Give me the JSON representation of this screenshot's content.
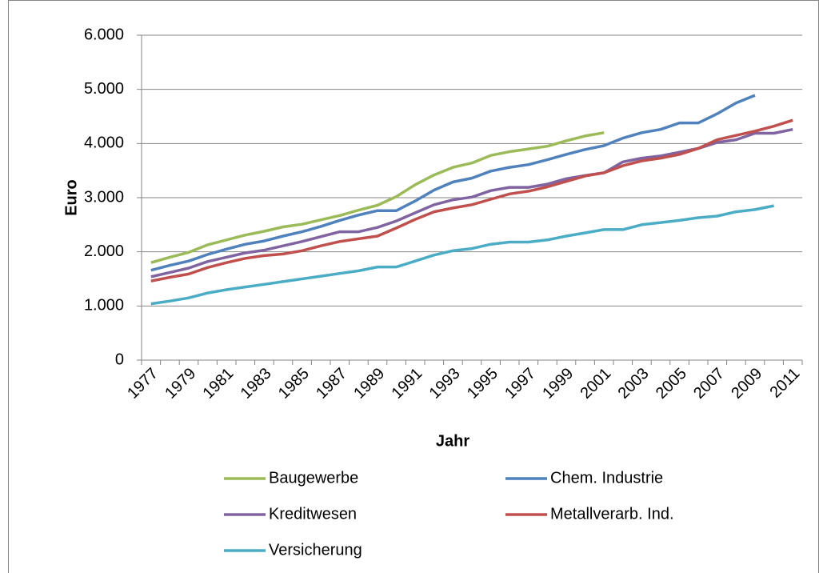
{
  "chart_data": {
    "type": "line",
    "y_label": "Euro",
    "x_label": "Jahr",
    "categories": [
      "1977",
      null,
      "1979",
      null,
      "1981",
      null,
      "1983",
      null,
      "1985",
      null,
      "1987",
      null,
      "1989",
      null,
      "1991",
      null,
      "1993",
      null,
      "1995",
      null,
      "1997",
      null,
      "1999",
      null,
      "2001",
      null,
      "2003",
      null,
      "2005",
      null,
      "2007",
      null,
      "2009",
      null,
      "2011"
    ],
    "ylim": [
      0,
      6000
    ],
    "yticks": [
      0,
      {
        "value": 1000,
        "label": "1.000"
      },
      {
        "value": 2000,
        "label": "2.000"
      },
      {
        "value": 3000,
        "label": "3.000"
      },
      {
        "value": 4000,
        "label": "4.000"
      },
      {
        "value": 5000,
        "label": "5.000"
      },
      {
        "value": 6000,
        "label": "6.000"
      }
    ],
    "grid": true,
    "legend": "bottom",
    "series": [
      {
        "name": "Baugewerbe",
        "color": "#9bbb59",
        "values": [
          1800,
          1900,
          1990,
          2130,
          2220,
          2310,
          2380,
          2460,
          2510,
          2590,
          2670,
          2770,
          2860,
          3020,
          3240,
          3420,
          3560,
          3640,
          3780,
          3850,
          3900,
          3950,
          4050,
          4140,
          4200,
          null,
          null,
          null,
          null,
          null,
          null,
          null,
          null,
          null,
          null
        ]
      },
      {
        "name": "Chem. Industrie",
        "color": "#4f81bd",
        "values": [
          1660,
          1750,
          1830,
          1950,
          2050,
          2140,
          2200,
          2290,
          2370,
          2470,
          2580,
          2680,
          2760,
          2760,
          2940,
          3140,
          3290,
          3360,
          3490,
          3560,
          3610,
          3700,
          3800,
          3890,
          3960,
          4100,
          4200,
          4260,
          4380,
          4380,
          4550,
          4750,
          4890,
          null,
          null
        ]
      },
      {
        "name": "Kreditwesen",
        "color": "#8064a2",
        "values": [
          1540,
          1620,
          1700,
          1820,
          1900,
          1980,
          2030,
          2110,
          2190,
          2280,
          2370,
          2370,
          2450,
          2570,
          2720,
          2870,
          2960,
          3010,
          3130,
          3190,
          3190,
          3250,
          3350,
          3410,
          3460,
          3660,
          3730,
          3770,
          3840,
          3910,
          4020,
          4070,
          4190,
          4190,
          4260
        ]
      },
      {
        "name": "Metallverarb. Ind.",
        "color": "#c0504d",
        "values": [
          1460,
          1530,
          1590,
          1710,
          1800,
          1880,
          1930,
          1960,
          2020,
          2110,
          2190,
          2240,
          2290,
          2440,
          2600,
          2740,
          2810,
          2870,
          2970,
          3070,
          3120,
          3200,
          3300,
          3400,
          3460,
          3590,
          3680,
          3730,
          3800,
          3910,
          4070,
          4150,
          4230,
          4320,
          4430
        ]
      },
      {
        "name": "Versicherung",
        "color": "#4bacc6",
        "values": [
          1040,
          1090,
          1150,
          1240,
          1300,
          1350,
          1400,
          1450,
          1500,
          1550,
          1600,
          1650,
          1720,
          1720,
          1830,
          1940,
          2020,
          2060,
          2140,
          2180,
          2180,
          2220,
          2290,
          2350,
          2410,
          2410,
          2500,
          2540,
          2580,
          2630,
          2660,
          2740,
          2780,
          2850,
          null
        ]
      }
    ]
  }
}
